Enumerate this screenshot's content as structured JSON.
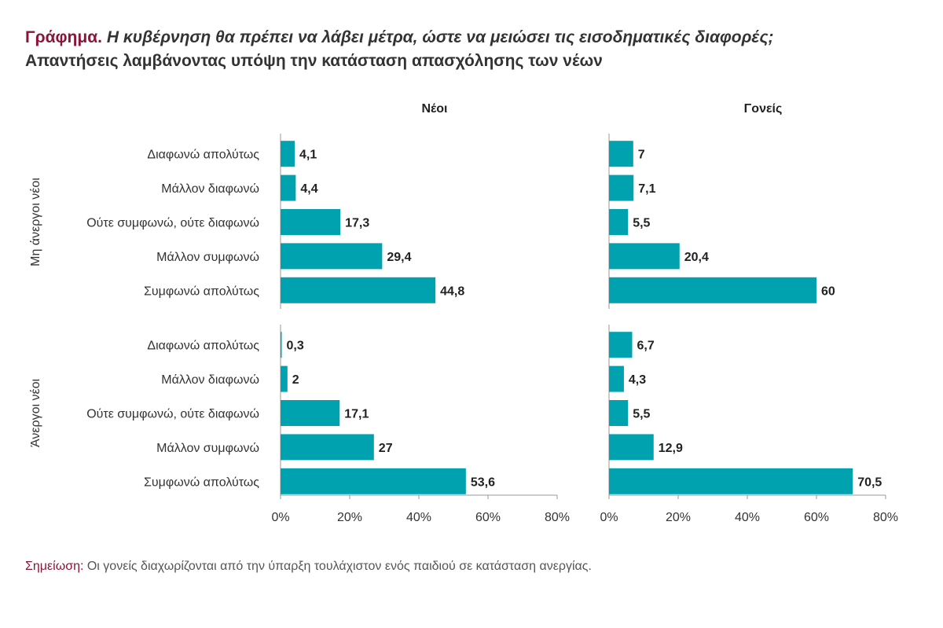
{
  "title": {
    "label": "Γράφημα.",
    "question": "Η κυβέρνηση θα πρέπει να λάβει μέτρα, ώστε να μειώσει τις εισοδηματικές διαφορές;",
    "subtitle": "Απαντήσεις λαμβάνοντας υπόψη την κατάσταση απασχόλησης των νέων"
  },
  "note": {
    "label": "Σημείωση:",
    "text": "Οι γονείς διαχωρίζονται από την ύπαρξη τουλάχιστον ενός παιδιού σε κατάσταση ανεργίας."
  },
  "colors": {
    "bar": "#00a2b0",
    "accent": "#8a1538",
    "axis": "#999999"
  },
  "chart_data": {
    "type": "bar",
    "orientation": "horizontal",
    "panels": [
      "Νέοι",
      "Γονείς"
    ],
    "groups": [
      "Μη άνεργοι νέοι",
      "Άνεργοι νέοι"
    ],
    "categories": [
      "Διαφωνώ απολύτως",
      "Μάλλον διαφωνώ",
      "Ούτε συμφωνώ, ούτε διαφωνώ",
      "Μάλλον συμφωνώ",
      "Συμφωνώ απολύτως"
    ],
    "series": [
      {
        "panel": "Νέοι",
        "group": "Μη άνεργοι νέοι",
        "values": [
          4.1,
          4.4,
          17.3,
          29.4,
          44.8
        ],
        "labels": [
          "4,1",
          "4,4",
          "17,3",
          "29,4",
          "44,8"
        ]
      },
      {
        "panel": "Νέοι",
        "group": "Άνεργοι νέοι",
        "values": [
          0.3,
          2,
          17.1,
          27,
          53.6
        ],
        "labels": [
          "0,3",
          "2",
          "17,1",
          "27",
          "53,6"
        ]
      },
      {
        "panel": "Γονείς",
        "group": "Μη άνεργοι νέοι",
        "values": [
          7,
          7.1,
          5.5,
          20.4,
          60
        ],
        "labels": [
          "7",
          "7,1",
          "5,5",
          "20,4",
          "60"
        ]
      },
      {
        "panel": "Γονείς",
        "group": "Άνεργοι νέοι",
        "values": [
          6.7,
          4.3,
          5.5,
          12.9,
          70.5
        ],
        "labels": [
          "6,7",
          "4,3",
          "5,5",
          "12,9",
          "70,5"
        ]
      }
    ],
    "xlim": [
      0,
      80
    ],
    "xticks": [
      "0%",
      "20%",
      "40%",
      "60%",
      "80%"
    ],
    "grid": false
  }
}
